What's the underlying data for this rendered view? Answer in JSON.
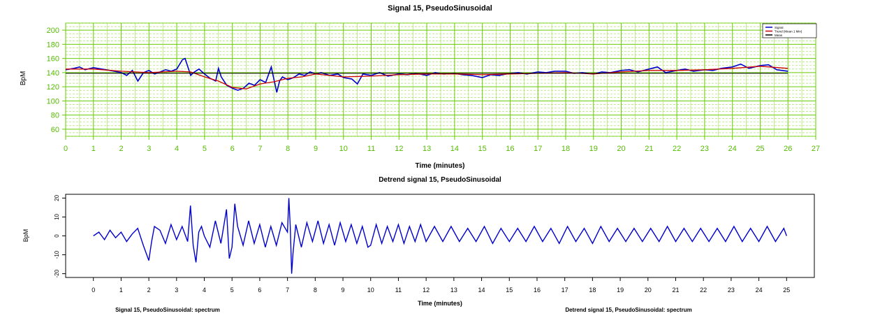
{
  "chart_data": [
    {
      "type": "line",
      "title": "Signal 15, PseudoSinusoidal",
      "xlabel": "Time (minutes)",
      "ylabel": "BpM",
      "xlim": [
        0,
        27
      ],
      "ylim": [
        50,
        210
      ],
      "x_ticks": [
        "0",
        "1",
        "2",
        "3",
        "4",
        "5",
        "6",
        "7",
        "8",
        "9",
        "10",
        "11",
        "12",
        "13",
        "14",
        "15",
        "16",
        "17",
        "18",
        "19",
        "20",
        "21",
        "22",
        "23",
        "24",
        "25",
        "26",
        "27"
      ],
      "y_ticks": [
        "60",
        "80",
        "100",
        "120",
        "140",
        "160",
        "180",
        "200"
      ],
      "grid": true,
      "legend_position": "top-right",
      "colors": {
        "background": "#ffffff",
        "grid": "#66cc00",
        "grid_minor": "#99dd44",
        "axis": "#66cc00"
      },
      "series": [
        {
          "name": "Signal",
          "color": "#0000cc",
          "x": [
            0,
            0.3,
            0.5,
            0.7,
            1,
            1.3,
            1.6,
            2,
            2.2,
            2.4,
            2.6,
            2.8,
            3,
            3.2,
            3.4,
            3.6,
            3.8,
            4,
            4.2,
            4.3,
            4.4,
            4.5,
            4.6,
            4.8,
            5,
            5.2,
            5.4,
            5.5,
            5.6,
            5.8,
            6,
            6.2,
            6.4,
            6.6,
            6.8,
            7,
            7.2,
            7.4,
            7.6,
            7.7,
            7.8,
            8,
            8.2,
            8.4,
            8.6,
            8.8,
            9,
            9.2,
            9.5,
            9.8,
            10,
            10.3,
            10.5,
            10.7,
            11,
            11.3,
            11.6,
            12,
            12.3,
            12.6,
            13,
            13.3,
            13.6,
            14,
            14.3,
            14.6,
            15,
            15.3,
            15.6,
            16,
            16.3,
            16.6,
            17,
            17.3,
            17.6,
            18,
            18.3,
            18.6,
            19,
            19.3,
            19.6,
            20,
            20.3,
            20.6,
            21,
            21.3,
            21.6,
            22,
            22.3,
            22.6,
            23,
            23.3,
            23.6,
            24,
            24.3,
            24.6,
            25,
            25.3,
            25.6,
            26
          ],
          "y": [
            144,
            146,
            148,
            144,
            147,
            145,
            143,
            140,
            136,
            143,
            128,
            140,
            143,
            138,
            141,
            144,
            142,
            145,
            158,
            160,
            148,
            136,
            140,
            145,
            138,
            132,
            128,
            146,
            134,
            122,
            118,
            115,
            118,
            125,
            122,
            130,
            126,
            148,
            112,
            128,
            134,
            130,
            133,
            138,
            136,
            141,
            138,
            140,
            136,
            138,
            133,
            131,
            124,
            138,
            136,
            140,
            135,
            138,
            137,
            139,
            136,
            140,
            138,
            139,
            137,
            136,
            133,
            137,
            136,
            139,
            140,
            138,
            141,
            140,
            142,
            142,
            139,
            140,
            138,
            141,
            140,
            143,
            144,
            141,
            145,
            148,
            140,
            143,
            145,
            142,
            144,
            143,
            146,
            148,
            152,
            146,
            150,
            151,
            144,
            142
          ]
        },
        {
          "name": "Trend (Mean 1 Min)",
          "color": "#cc0000",
          "x": [
            0,
            1,
            2,
            3,
            4,
            4.5,
            5,
            5.5,
            6,
            6.5,
            7,
            7.5,
            8,
            8.5,
            9,
            10,
            11,
            12,
            13,
            14,
            15,
            16,
            17,
            18,
            19,
            20,
            21,
            22,
            23,
            24,
            25,
            26
          ],
          "y": [
            145,
            145,
            142,
            140,
            142,
            141,
            134,
            128,
            119,
            117,
            124,
            127,
            132,
            134,
            138,
            134,
            135,
            137,
            138,
            138,
            137,
            138,
            139,
            140,
            138,
            141,
            143,
            143,
            144,
            146,
            149,
            146
          ]
        },
        {
          "name": "Mean",
          "color": "#000000",
          "x": [
            0,
            26
          ],
          "y": [
            139,
            139
          ]
        }
      ]
    },
    {
      "type": "line",
      "title": "Detrend signal 15, PseudoSinusoidal",
      "xlabel": "Time (minutes)",
      "ylabel": "BpM",
      "xlim": [
        -1,
        26
      ],
      "ylim": [
        -22,
        22
      ],
      "x_ticks": [
        "0",
        "1",
        "2",
        "3",
        "4",
        "5",
        "6",
        "7",
        "8",
        "9",
        "10",
        "11",
        "12",
        "13",
        "14",
        "15",
        "16",
        "17",
        "18",
        "19",
        "20",
        "21",
        "22",
        "23",
        "24",
        "25"
      ],
      "y_ticks": [
        "-20",
        "-10",
        "0",
        "10",
        "20"
      ],
      "grid": false,
      "colors": {
        "line": "#0000cc",
        "frame": "#000000"
      },
      "series": [
        {
          "color": "#0000cc",
          "x": [
            0,
            0.2,
            0.4,
            0.6,
            0.8,
            1,
            1.2,
            1.4,
            1.6,
            1.8,
            1.9,
            2,
            2.1,
            2.2,
            2.4,
            2.6,
            2.8,
            3,
            3.2,
            3.4,
            3.5,
            3.6,
            3.7,
            3.8,
            3.9,
            4,
            4.2,
            4.4,
            4.6,
            4.8,
            4.9,
            5,
            5.1,
            5.2,
            5.4,
            5.6,
            5.8,
            6,
            6.2,
            6.4,
            6.6,
            6.8,
            7,
            7.05,
            7.1,
            7.15,
            7.2,
            7.3,
            7.5,
            7.7,
            7.9,
            8.1,
            8.3,
            8.5,
            8.7,
            8.9,
            9.1,
            9.3,
            9.5,
            9.7,
            9.9,
            10,
            10.2,
            10.4,
            10.6,
            10.8,
            11,
            11.2,
            11.4,
            11.6,
            11.8,
            12,
            12.3,
            12.6,
            12.9,
            13.2,
            13.5,
            13.8,
            14.1,
            14.4,
            14.7,
            15,
            15.3,
            15.6,
            15.9,
            16.2,
            16.5,
            16.8,
            17.1,
            17.4,
            17.7,
            18,
            18.3,
            18.6,
            18.9,
            19.2,
            19.5,
            19.8,
            20.1,
            20.4,
            20.7,
            21,
            21.3,
            21.6,
            21.9,
            22.2,
            22.5,
            22.8,
            23.1,
            23.4,
            23.7,
            24,
            24.3,
            24.6,
            24.9,
            25
          ],
          "y": [
            0,
            2,
            -2,
            3,
            -1,
            2,
            -3,
            1,
            4,
            -5,
            -9,
            -13,
            -3,
            5,
            3,
            -4,
            6,
            -2,
            5,
            -3,
            16,
            -5,
            -14,
            2,
            5,
            0,
            -6,
            8,
            -4,
            14,
            -12,
            -6,
            17,
            5,
            -5,
            8,
            -4,
            6,
            -6,
            5,
            -5,
            7,
            2,
            20,
            5,
            -20,
            -9,
            6,
            -6,
            7,
            -3,
            8,
            -4,
            6,
            -5,
            7,
            -3,
            6,
            -4,
            5,
            -6,
            -5,
            6,
            -4,
            5,
            -3,
            6,
            -4,
            5,
            -3,
            6,
            -3,
            5,
            -3,
            5,
            -3,
            4,
            -3,
            5,
            -4,
            4,
            -3,
            4,
            -3,
            5,
            -3,
            4,
            -4,
            5,
            -3,
            4,
            -4,
            5,
            -3,
            4,
            -3,
            4,
            -3,
            4,
            -3,
            5,
            -3,
            4,
            -3,
            4,
            -3,
            4,
            -3,
            5,
            -3,
            4,
            -3,
            5,
            -3,
            4,
            0
          ]
        }
      ]
    }
  ],
  "footer": {
    "left_caption": "Signal 15, PseudoSinusoidal: spectrum",
    "right_caption": "Detrend signal 15, PseudoSinusoidal: spectrum"
  }
}
